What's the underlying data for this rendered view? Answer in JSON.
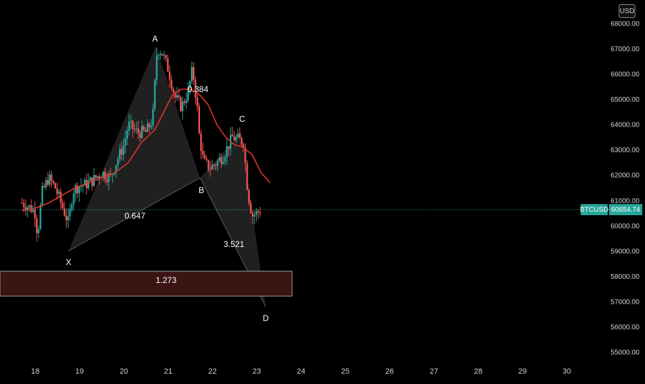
{
  "currency": "USD",
  "symbol": "BTCUSD",
  "last_price": "60654.74",
  "price_axis": [
    "68000.00",
    "67000.00",
    "66000.00",
    "65000.00",
    "64000.00",
    "63000.00",
    "62000.00",
    "61000.00",
    "60000.00",
    "59000.00",
    "58000.00",
    "57000.00",
    "56000.00",
    "55000.00"
  ],
  "time_axis": [
    "18",
    "19",
    "20",
    "21",
    "22",
    "23",
    "24",
    "25",
    "26",
    "27",
    "28",
    "29",
    "30"
  ],
  "pattern": {
    "points": [
      {
        "label": "X",
        "price": 59000
      },
      {
        "label": "A",
        "price": 67100
      },
      {
        "label": "B",
        "price": 61900
      },
      {
        "label": "C",
        "price": 63700
      },
      {
        "label": "D",
        "price": 56800
      }
    ],
    "ratios": {
      "ab": "0.647",
      "bc": "0.384",
      "cd": "3.521",
      "xd": "1.273"
    }
  },
  "colors": {
    "up": "#26a69a",
    "down": "#ef5350",
    "ma": "#e0362c",
    "pattern_fill": "#3a3a3a",
    "zone": "#3b1414"
  },
  "chart_data": {
    "type": "candlestick",
    "x_labels": [
      "18",
      "19",
      "20",
      "21",
      "22",
      "23",
      "24",
      "25",
      "26",
      "27",
      "28",
      "29",
      "30"
    ],
    "ylim": [
      54500,
      68500
    ],
    "close_path": [
      [
        17.7,
        60900
      ],
      [
        17.9,
        60700
      ],
      [
        18.0,
        60500
      ],
      [
        18.05,
        59600
      ],
      [
        18.15,
        61300
      ],
      [
        18.3,
        61900
      ],
      [
        18.45,
        61500
      ],
      [
        18.6,
        60800
      ],
      [
        18.75,
        60100
      ],
      [
        18.85,
        61400
      ],
      [
        19.0,
        61600
      ],
      [
        19.1,
        61600
      ],
      [
        19.3,
        61800
      ],
      [
        19.5,
        62100
      ],
      [
        19.7,
        61900
      ],
      [
        19.8,
        62400
      ],
      [
        20.0,
        63200
      ],
      [
        20.1,
        64000
      ],
      [
        20.3,
        63700
      ],
      [
        20.5,
        63700
      ],
      [
        20.65,
        64200
      ],
      [
        20.75,
        67000
      ],
      [
        20.85,
        66900
      ],
      [
        21.0,
        66200
      ],
      [
        21.15,
        65100
      ],
      [
        21.3,
        64700
      ],
      [
        21.45,
        65300
      ],
      [
        21.55,
        66200
      ],
      [
        21.65,
        64800
      ],
      [
        21.7,
        63600
      ],
      [
        21.8,
        62500
      ],
      [
        21.95,
        62300
      ],
      [
        22.1,
        62500
      ],
      [
        22.25,
        62800
      ],
      [
        22.45,
        63500
      ],
      [
        22.6,
        63400
      ],
      [
        22.7,
        63300
      ],
      [
        22.8,
        61300
      ],
      [
        22.9,
        60400
      ],
      [
        23.0,
        60500
      ],
      [
        23.1,
        60650
      ]
    ],
    "moving_average": [
      [
        17.7,
        60600
      ],
      [
        18.0,
        60700
      ],
      [
        18.3,
        60900
      ],
      [
        18.6,
        61200
      ],
      [
        18.9,
        61500
      ],
      [
        19.2,
        61700
      ],
      [
        19.5,
        61900
      ],
      [
        19.8,
        62100
      ],
      [
        20.1,
        62500
      ],
      [
        20.4,
        63300
      ],
      [
        20.7,
        63800
      ],
      [
        20.9,
        64500
      ],
      [
        21.1,
        65200
      ],
      [
        21.3,
        65400
      ],
      [
        21.5,
        65400
      ],
      [
        21.7,
        65200
      ],
      [
        21.9,
        64800
      ],
      [
        22.1,
        64000
      ],
      [
        22.3,
        63500
      ],
      [
        22.5,
        63200
      ],
      [
        22.7,
        63100
      ],
      [
        22.9,
        62800
      ],
      [
        23.1,
        62100
      ],
      [
        23.3,
        61700
      ]
    ]
  }
}
